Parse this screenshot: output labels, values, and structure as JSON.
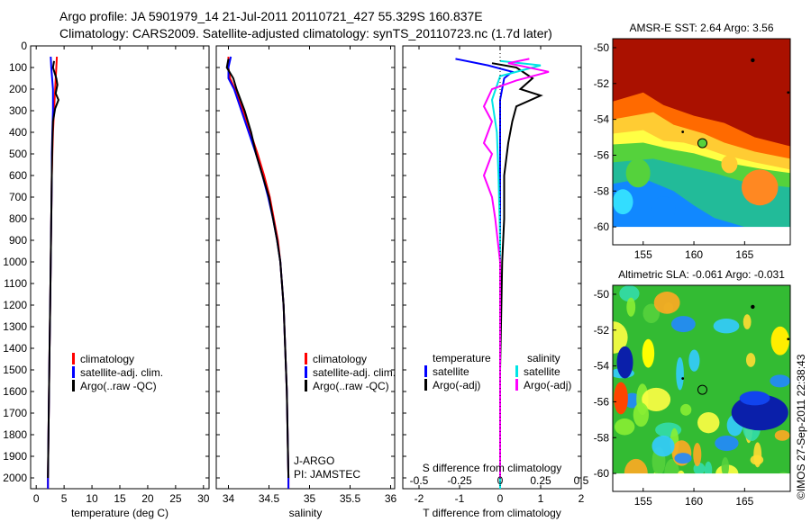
{
  "header": {
    "title_line1": "Argo profile: JA 5901979_14 21-Jul-2011 20110721_427 55.329S 160.837E",
    "title_line2": "Climatology: CARS2009. Satellite-adjusted climatology: synTS_20110723.nc (1.7d later)"
  },
  "colors": {
    "climatology": "#ff0000",
    "satellite": "#0000ff",
    "argo": "#000000",
    "sat_s": "#00e5e5",
    "argo_s": "#ff00ff"
  },
  "chart_data": [
    {
      "type": "line",
      "xlabel": "temperature (deg C)",
      "xlim": [
        -1,
        31
      ],
      "ylim": [
        2050,
        0
      ],
      "xticks": [
        0,
        5,
        10,
        15,
        20,
        25,
        30
      ],
      "yticks": [
        0,
        100,
        200,
        300,
        400,
        500,
        600,
        700,
        800,
        900,
        1000,
        1100,
        1200,
        1300,
        1400,
        1500,
        1600,
        1700,
        1800,
        1900,
        2000
      ],
      "legend": [
        "climatology",
        "satellite-adj. clim.",
        "Argo(..raw -QC)"
      ],
      "legend_position": "lower-center",
      "series": [
        {
          "name": "climatology",
          "color": "#ff0000",
          "points": [
            [
              3.7,
              50
            ],
            [
              3.6,
              100
            ],
            [
              3.5,
              150
            ],
            [
              3.4,
              200
            ],
            [
              3.2,
              300
            ],
            [
              3.0,
              400
            ],
            [
              2.9,
              500
            ],
            [
              2.8,
              600
            ],
            [
              2.7,
              800
            ],
            [
              2.6,
              1000
            ],
            [
              2.5,
              1200
            ],
            [
              2.4,
              1400
            ],
            [
              2.3,
              1600
            ],
            [
              2.2,
              1800
            ],
            [
              2.1,
              2000
            ],
            [
              2.1,
              2050
            ]
          ]
        },
        {
          "name": "satellite-adj. clim.",
          "color": "#0000ff",
          "points": [
            [
              2.6,
              50
            ],
            [
              2.7,
              100
            ],
            [
              3.0,
              200
            ],
            [
              3.0,
              300
            ],
            [
              2.9,
              400
            ],
            [
              2.8,
              500
            ],
            [
              2.8,
              600
            ],
            [
              2.7,
              800
            ],
            [
              2.6,
              1000
            ],
            [
              2.5,
              1200
            ],
            [
              2.4,
              1400
            ],
            [
              2.3,
              1600
            ],
            [
              2.2,
              1800
            ],
            [
              2.1,
              2000
            ],
            [
              2.1,
              2050
            ]
          ]
        },
        {
          "name": "Argo(..raw -QC)",
          "color": "#000000",
          "points": [
            [
              3.2,
              70
            ],
            [
              3.0,
              100
            ],
            [
              3.6,
              150
            ],
            [
              3.8,
              180
            ],
            [
              3.5,
              220
            ],
            [
              4.0,
              250
            ],
            [
              3.4,
              290
            ],
            [
              3.0,
              350
            ],
            [
              2.9,
              450
            ],
            [
              2.8,
              600
            ],
            [
              2.7,
              800
            ],
            [
              2.6,
              1000
            ],
            [
              2.5,
              1200
            ],
            [
              2.4,
              1400
            ],
            [
              2.3,
              1600
            ],
            [
              2.2,
              1800
            ],
            [
              2.1,
              2000
            ]
          ]
        }
      ]
    },
    {
      "type": "line",
      "xlabel": "salinity",
      "xlim": [
        33.85,
        36.05
      ],
      "ylim": [
        2050,
        0
      ],
      "xticks": [
        34,
        34.5,
        35,
        35.5,
        36
      ],
      "legend": [
        "climatology",
        "satellite-adj. clim.",
        "Argo(..raw -QC)"
      ],
      "legend_position": "lower-right",
      "annotations": [
        "J-ARGO",
        "PI: JAMSTEC"
      ],
      "series": [
        {
          "name": "climatology",
          "color": "#ff0000",
          "points": [
            [
              34.0,
              50
            ],
            [
              34.0,
              100
            ],
            [
              34.02,
              150
            ],
            [
              34.08,
              200
            ],
            [
              34.18,
              300
            ],
            [
              34.27,
              400
            ],
            [
              34.36,
              500
            ],
            [
              34.44,
              600
            ],
            [
              34.51,
              700
            ],
            [
              34.56,
              800
            ],
            [
              34.61,
              900
            ],
            [
              34.64,
              1000
            ],
            [
              34.68,
              1200
            ],
            [
              34.7,
              1400
            ],
            [
              34.72,
              1600
            ],
            [
              34.73,
              1800
            ],
            [
              34.74,
              2000
            ],
            [
              34.74,
              2050
            ]
          ]
        },
        {
          "name": "satellite-adj. clim.",
          "color": "#0000ff",
          "points": [
            [
              34.03,
              50
            ],
            [
              34.0,
              100
            ],
            [
              34.0,
              150
            ],
            [
              34.07,
              200
            ],
            [
              34.16,
              300
            ],
            [
              34.25,
              400
            ],
            [
              34.34,
              500
            ],
            [
              34.42,
              600
            ],
            [
              34.49,
              700
            ],
            [
              34.55,
              800
            ],
            [
              34.6,
              900
            ],
            [
              34.64,
              1000
            ],
            [
              34.68,
              1200
            ],
            [
              34.7,
              1400
            ],
            [
              34.72,
              1600
            ],
            [
              34.73,
              1800
            ],
            [
              34.74,
              2000
            ],
            [
              34.74,
              2050
            ]
          ]
        },
        {
          "name": "Argo(..raw -QC)",
          "color": "#000000",
          "points": [
            [
              34.0,
              60
            ],
            [
              33.98,
              100
            ],
            [
              34.06,
              150
            ],
            [
              34.1,
              200
            ],
            [
              34.2,
              300
            ],
            [
              34.28,
              400
            ],
            [
              34.34,
              500
            ],
            [
              34.42,
              600
            ],
            [
              34.5,
              700
            ],
            [
              34.55,
              800
            ],
            [
              34.6,
              900
            ],
            [
              34.64,
              1000
            ],
            [
              34.68,
              1200
            ],
            [
              34.7,
              1400
            ],
            [
              34.72,
              1600
            ],
            [
              34.73,
              1800
            ],
            [
              34.74,
              2000
            ]
          ]
        }
      ]
    },
    {
      "type": "line",
      "xlabel": "T difference from climatology",
      "xlabel_top": "S difference from climatology",
      "xlim": [
        -2.4,
        2.0
      ],
      "ylim": [
        2050,
        0
      ],
      "xticks_bottom": [
        -2,
        -1,
        0,
        1,
        2
      ],
      "xtick_labels_bottom": [
        "-2",
        "-1",
        "0",
        "1",
        "2"
      ],
      "xticks_top": [
        -0.5,
        -0.25,
        0,
        0.25,
        0.5
      ],
      "xtick_labels_top": [
        "-0.5",
        "-0.25",
        "0",
        "0.25",
        "0.5"
      ],
      "top_scale_factor": 4,
      "legend": {
        "temperature_header": "temperature",
        "salinity_header": "salinity",
        "temperature_items": [
          "satellite",
          "Argo(-adj)"
        ],
        "salinity_items": [
          "satellite",
          "Argo(-adj)"
        ]
      },
      "series": [
        {
          "name": "satellite",
          "group": "temperature",
          "color": "#0000ff",
          "points": [
            [
              -1.1,
              60
            ],
            [
              -0.3,
              90
            ],
            [
              0.3,
              120
            ],
            [
              0.1,
              150
            ],
            [
              0.0,
              250
            ],
            [
              0.0,
              400
            ],
            [
              0.0,
              600
            ],
            [
              0.0,
              800
            ],
            [
              0.0,
              1000
            ],
            [
              0.0,
              1500
            ],
            [
              0.0,
              2000
            ],
            [
              0.0,
              2050
            ]
          ]
        },
        {
          "name": "Argo(-adj)",
          "group": "temperature",
          "color": "#000000",
          "points": [
            [
              -0.2,
              80
            ],
            [
              0.4,
              100
            ],
            [
              0.8,
              150
            ],
            [
              0.5,
              200
            ],
            [
              1.0,
              230
            ],
            [
              0.4,
              280
            ],
            [
              0.3,
              350
            ],
            [
              0.2,
              450
            ],
            [
              0.1,
              600
            ],
            [
              0.1,
              800
            ],
            [
              0.05,
              1000
            ],
            [
              0.03,
              1200
            ],
            [
              0.0,
              1500
            ],
            [
              0.0,
              2000
            ],
            [
              0.0,
              2050
            ]
          ]
        },
        {
          "name": "satellite",
          "group": "salinity",
          "color": "#00e5e5",
          "points": [
            [
              0.0,
              70
            ],
            [
              0.25,
              90
            ],
            [
              0.0,
              140
            ],
            [
              -0.05,
              250
            ],
            [
              -0.02,
              400
            ],
            [
              -0.01,
              600
            ],
            [
              0.0,
              900
            ],
            [
              0.0,
              1200
            ],
            [
              0.0,
              1600
            ],
            [
              0.0,
              2050
            ]
          ]
        },
        {
          "name": "Argo(-adj)",
          "group": "salinity",
          "color": "#ff00ff",
          "points": [
            [
              0.18,
              60
            ],
            [
              0.05,
              80
            ],
            [
              0.3,
              120
            ],
            [
              0.1,
              160
            ],
            [
              -0.05,
              200
            ],
            [
              -0.1,
              280
            ],
            [
              -0.05,
              350
            ],
            [
              -0.1,
              450
            ],
            [
              -0.05,
              500
            ],
            [
              -0.1,
              600
            ],
            [
              -0.05,
              700
            ],
            [
              -0.03,
              800
            ],
            [
              0.0,
              1000
            ],
            [
              0.0,
              1500
            ],
            [
              0.0,
              2000
            ]
          ]
        }
      ]
    },
    {
      "type": "heatmap",
      "title_label": "AMSR-E SST:",
      "title_value_sat": "2.64",
      "argo_label": "Argo:",
      "title_value_argo": "3.56",
      "xlim": [
        152,
        169.5
      ],
      "ylim": [
        -61,
        -49.5
      ],
      "xticks": [
        155,
        160,
        165
      ],
      "yticks": [
        -50,
        -52,
        -54,
        -56,
        -58,
        -60
      ],
      "marker": {
        "lon": 160.837,
        "lat": -55.329
      }
    },
    {
      "type": "heatmap",
      "title_label": "Altimetric SLA:",
      "title_value_sat": "-0.061",
      "argo_label": "Argo:",
      "title_value_argo": "-0.031",
      "xlim": [
        152,
        169.5
      ],
      "ylim": [
        -61,
        -49.5
      ],
      "xticks": [
        155,
        160,
        165
      ],
      "yticks": [
        -50,
        -52,
        -54,
        -56,
        -58,
        -60
      ],
      "marker": {
        "lon": 160.837,
        "lat": -55.329
      }
    }
  ],
  "side_stamp": "©IMOS 27-Sep-2011 22:38:43"
}
